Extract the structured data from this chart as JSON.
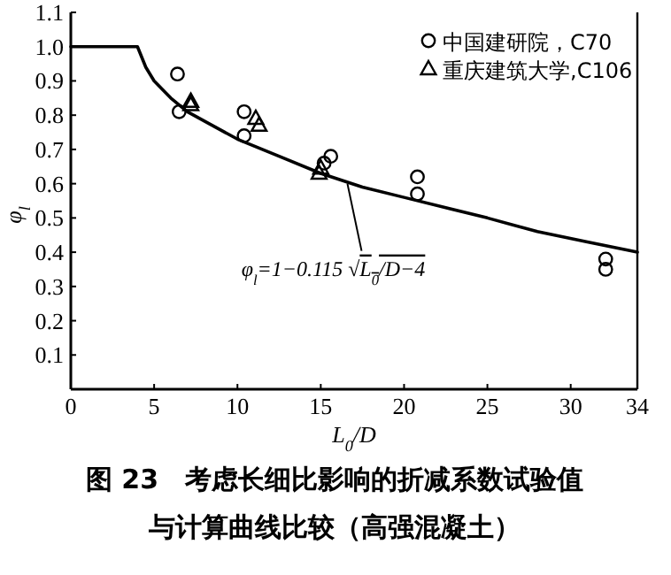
{
  "chart_data": {
    "type": "scatter",
    "title": "图 23　考虑长细比影响的折减系数试验值与计算曲线比较（高强混凝土）",
    "xlabel": "L$_{0}$/D",
    "ylabel": "φ$_{l}$",
    "xlim": [
      0,
      34
    ],
    "ylim": [
      0,
      1.1
    ],
    "xticks": [
      0,
      5,
      10,
      15,
      20,
      25,
      30,
      34
    ],
    "yticks": [
      {
        "value": 0.1,
        "label": "0.1"
      },
      {
        "value": 0.2,
        "label": "0.2"
      },
      {
        "value": 0.3,
        "label": "0.3"
      },
      {
        "value": 0.4,
        "label": "0.4"
      },
      {
        "value": 0.5,
        "label": "0.5"
      },
      {
        "value": 0.6,
        "label": "0.6"
      },
      {
        "value": 0.7,
        "label": "0.7"
      },
      {
        "value": 0.8,
        "label": "0.8"
      },
      {
        "value": 0.9,
        "label": "0.9"
      },
      {
        "value": 1.0,
        "label": "1.0"
      },
      {
        "value": 1.1,
        "label": "1.1"
      }
    ],
    "grid": false,
    "legend": "top right",
    "series": [
      {
        "type": "line",
        "color": "#000000",
        "marker": "none",
        "line_style": "solid",
        "x": [
          0,
          4,
          4.5,
          5,
          6,
          7,
          8.5,
          10,
          12.5,
          15,
          17.5,
          20,
          22.5,
          25,
          28,
          31,
          34
        ],
        "values": [
          1.0,
          1.0,
          0.94,
          0.9,
          0.85,
          0.81,
          0.77,
          0.73,
          0.68,
          0.63,
          0.59,
          0.56,
          0.53,
          0.5,
          0.46,
          0.43,
          0.4
        ]
      },
      {
        "type": "scatter",
        "name": "中国建研院，C70",
        "color": "#000000",
        "marker": "circle",
        "x": [
          6.4,
          6.5,
          10.4,
          10.4,
          15.6,
          15.2,
          20.8,
          20.8,
          32.1,
          32.1
        ],
        "values": [
          0.92,
          0.81,
          0.81,
          0.74,
          0.68,
          0.66,
          0.62,
          0.57,
          0.38,
          0.35
        ]
      },
      {
        "type": "scatter",
        "name": "重庆建筑大学,C106",
        "color": "#000000",
        "marker": "triangle",
        "x": [
          7.2,
          7.2,
          11.1,
          11.3,
          15.0,
          14.9
        ],
        "values": [
          0.84,
          0.83,
          0.79,
          0.77,
          0.645,
          0.63
        ]
      }
    ],
    "annotations": [
      {
        "text": "φ$_{l}$=1−0.115 √L$_{0}$/D−4",
        "x": 16.6,
        "y": 0.6
      }
    ]
  }
}
